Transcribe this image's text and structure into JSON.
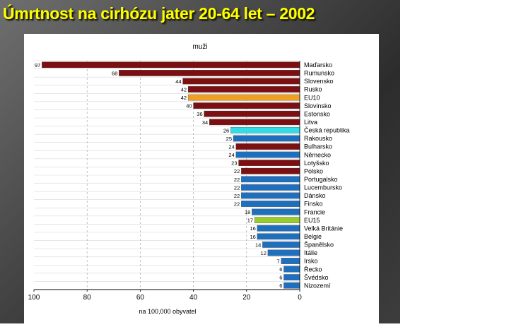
{
  "slide": {
    "title": "Úmrtnost na cirhózu jater 20-64 let – 2002"
  },
  "chart_data": {
    "type": "bar",
    "orientation": "horizontal",
    "title": "muži",
    "xlabel": "na 100,000 obyvatel",
    "xlim": [
      0,
      100
    ],
    "x_reversed": true,
    "x_ticks": [
      100,
      80,
      60,
      40,
      20,
      0
    ],
    "grid": "vertical dashed",
    "categories": [
      "Maďarsko",
      "Rumunsko",
      "Slovensko",
      "Rusko",
      "EU10",
      "Slovinsko",
      "Estonsko",
      "Litva",
      "Česká republika",
      "Rakousko",
      "Bulharsko",
      "Německo",
      "Lotyšsko",
      "Polsko",
      "Portugalsko",
      "Lucembursko",
      "Dánsko",
      "Finsko",
      "Francie",
      "EU15",
      "Velká Británie",
      "Belgie",
      "Španělsko",
      "Itálie",
      "Irsko",
      "Řecko",
      "Švédsko",
      "Nizozemí"
    ],
    "values": [
      97,
      68,
      44,
      42,
      42,
      40,
      36,
      34,
      26,
      25,
      24,
      24,
      23,
      22,
      22,
      22,
      22,
      22,
      18,
      17,
      16,
      16,
      14,
      12,
      7,
      6,
      6,
      6
    ],
    "bar_groups": [
      "east",
      "east",
      "east",
      "east",
      "eu10",
      "east",
      "east",
      "east",
      "czech",
      "west",
      "east",
      "west",
      "east",
      "east",
      "west",
      "west",
      "west",
      "west",
      "west",
      "eu15",
      "west",
      "west",
      "west",
      "west",
      "west",
      "west",
      "west",
      "west"
    ],
    "colors": {
      "east": "#7b0f12",
      "west": "#1f6fbf",
      "eu10": "#f0a020",
      "czech": "#33dde8",
      "eu15": "#99cc33"
    }
  }
}
